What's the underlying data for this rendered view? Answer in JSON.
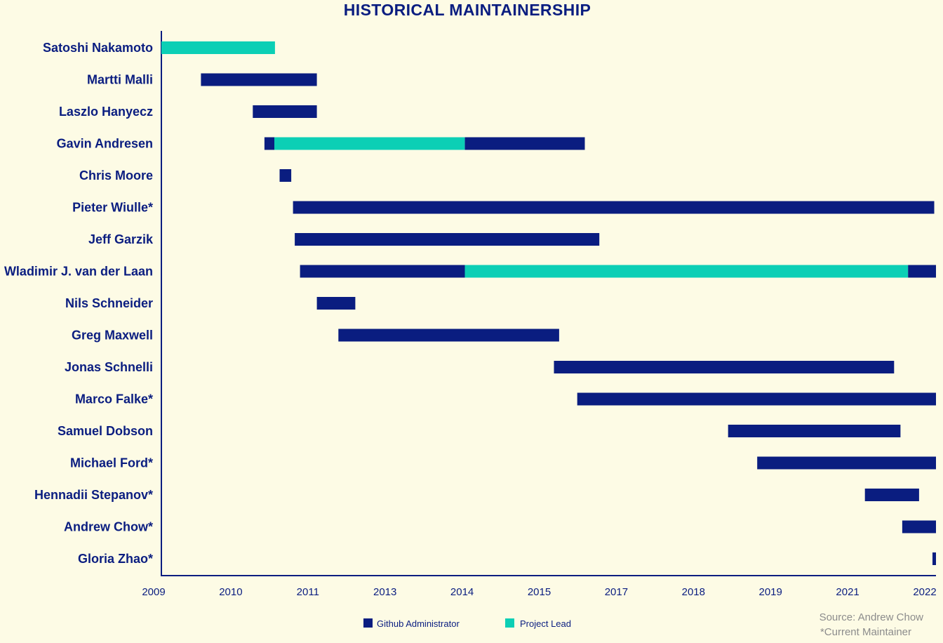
{
  "chart_data": {
    "type": "bar",
    "orientation": "horizontal-timeline",
    "title": "HISTORICAL MAINTAINERSHIP",
    "x_ticks": [
      "2009",
      "2010",
      "2011",
      "2013",
      "2014",
      "2015",
      "2017",
      "2018",
      "2019",
      "2021",
      "2022"
    ],
    "xlim": [
      2009.0,
      2022.3
    ],
    "grid": false,
    "legend_position": "bottom-center",
    "legend": [
      {
        "key": "admin",
        "label": "Github Administrator",
        "color": "#0a1d80"
      },
      {
        "key": "lead",
        "label": "Project Lead",
        "color": "#0ccfb5"
      }
    ],
    "rows": [
      {
        "name": "Satoshi Nakamoto",
        "segments": [
          {
            "start": 2009.0,
            "end": 2010.95,
            "role": "lead"
          }
        ]
      },
      {
        "name": "Martti Malli",
        "segments": [
          {
            "start": 2009.68,
            "end": 2011.67,
            "role": "admin"
          }
        ]
      },
      {
        "name": "Laszlo Hanyecz",
        "segments": [
          {
            "start": 2010.57,
            "end": 2011.67,
            "role": "admin"
          }
        ]
      },
      {
        "name": "Gavin Andresen",
        "segments": [
          {
            "start": 2010.77,
            "end": 2010.94,
            "role": "admin"
          },
          {
            "start": 2010.94,
            "end": 2014.21,
            "role": "lead"
          },
          {
            "start": 2014.21,
            "end": 2016.27,
            "role": "admin"
          }
        ]
      },
      {
        "name": "Chris Moore",
        "segments": [
          {
            "start": 2011.03,
            "end": 2011.23,
            "role": "admin"
          }
        ]
      },
      {
        "name": "Pieter Wiulle*",
        "segments": [
          {
            "start": 2011.26,
            "end": 2022.27,
            "role": "admin"
          }
        ]
      },
      {
        "name": "Jeff Garzik",
        "segments": [
          {
            "start": 2011.29,
            "end": 2016.52,
            "role": "admin"
          }
        ]
      },
      {
        "name": "Wladimir J. van der Laan",
        "segments": [
          {
            "start": 2011.38,
            "end": 2014.21,
            "role": "admin"
          },
          {
            "start": 2014.21,
            "end": 2021.82,
            "role": "lead"
          },
          {
            "start": 2021.82,
            "end": 2022.3,
            "role": "admin"
          }
        ]
      },
      {
        "name": "Nils Schneider",
        "segments": [
          {
            "start": 2011.67,
            "end": 2012.33,
            "role": "admin"
          }
        ]
      },
      {
        "name": "Greg Maxwell",
        "segments": [
          {
            "start": 2012.04,
            "end": 2015.83,
            "role": "admin"
          }
        ]
      },
      {
        "name": "Jonas Schnelli",
        "segments": [
          {
            "start": 2015.74,
            "end": 2021.58,
            "role": "admin"
          }
        ]
      },
      {
        "name": "Marco Falke*",
        "segments": [
          {
            "start": 2016.14,
            "end": 2022.3,
            "role": "admin"
          }
        ]
      },
      {
        "name": "Samuel Dobson",
        "segments": [
          {
            "start": 2018.73,
            "end": 2021.69,
            "role": "admin"
          }
        ]
      },
      {
        "name": "Michael Ford*",
        "segments": [
          {
            "start": 2019.23,
            "end": 2022.3,
            "role": "admin"
          }
        ]
      },
      {
        "name": "Hennadii Stepanov*",
        "segments": [
          {
            "start": 2021.08,
            "end": 2022.01,
            "role": "admin"
          }
        ]
      },
      {
        "name": "Andrew Chow*",
        "segments": [
          {
            "start": 2021.72,
            "end": 2022.3,
            "role": "admin"
          }
        ]
      },
      {
        "name": "Gloria Zhao*",
        "segments": [
          {
            "start": 2022.24,
            "end": 2022.3,
            "role": "admin"
          }
        ]
      }
    ]
  },
  "notes": {
    "source": "Source: Andrew Chow",
    "footnote": "*Current Maintainer"
  },
  "colors": {
    "background": "#fdfbe5",
    "text": "#0a1d80",
    "axis": "#0a1d80",
    "admin": "#0a1d80",
    "lead": "#0ccfb5",
    "note": "#8c8c8c"
  }
}
